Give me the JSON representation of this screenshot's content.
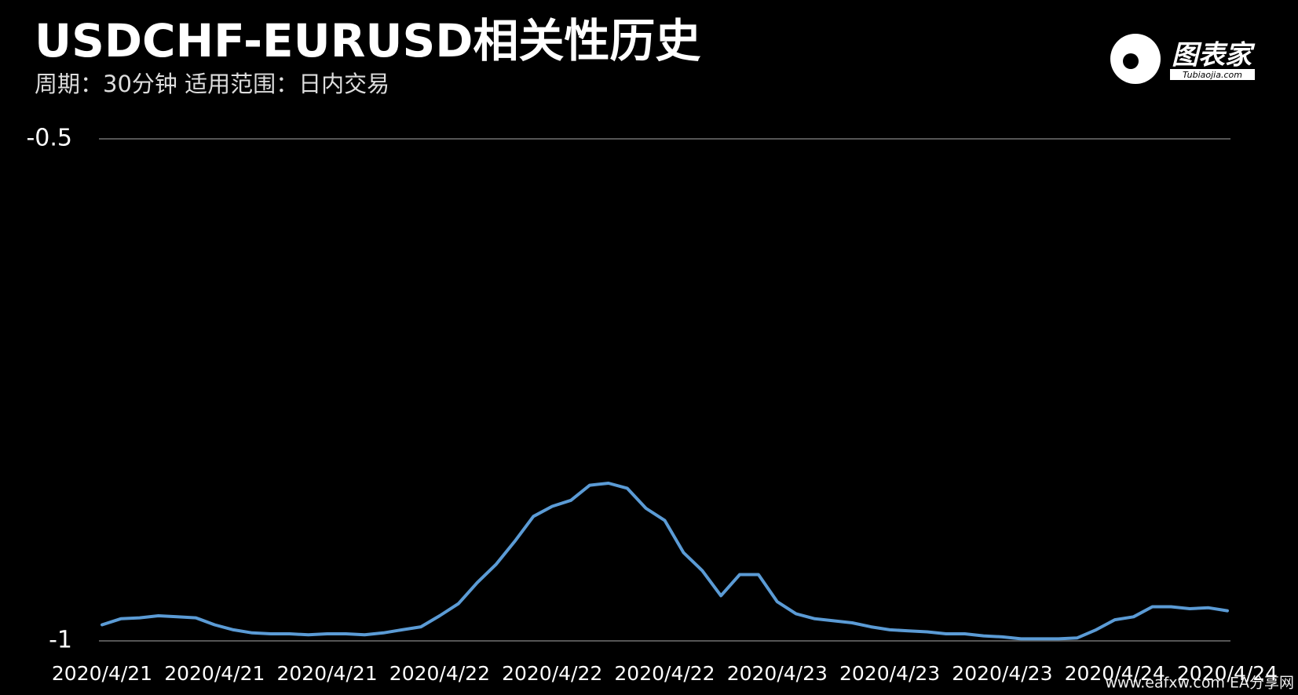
{
  "chart_data": {
    "type": "line",
    "title": "USDCHF-EURUSD相关性历史",
    "subtitle": "周期：30分钟  适用范围：日内交易",
    "logo": "图表家",
    "logo_sub": "Tubiaojia.com",
    "watermark": "www.eafxw.com  EA分享网",
    "categories": [
      "2020/4/21",
      null,
      null,
      null,
      null,
      null,
      "2020/4/21",
      null,
      null,
      null,
      null,
      null,
      "2020/4/21",
      null,
      null,
      null,
      null,
      null,
      "2020/4/22",
      null,
      null,
      null,
      null,
      null,
      "2020/4/22",
      null,
      null,
      null,
      null,
      null,
      "2020/4/22",
      null,
      null,
      null,
      null,
      null,
      "2020/4/23",
      null,
      null,
      null,
      null,
      null,
      "2020/4/23",
      null,
      null,
      null,
      null,
      null,
      "2020/4/23",
      null,
      null,
      null,
      null,
      null,
      "2020/4/24",
      null,
      null,
      null,
      null,
      null,
      "2020/4/24"
    ],
    "series": [
      {
        "name": "USDCHF-EURUSD",
        "color": "#5b9bd5",
        "values": [
          -0.984,
          -0.978,
          -0.977,
          -0.975,
          -0.976,
          -0.977,
          -0.984,
          -0.989,
          -0.992,
          -0.993,
          -0.993,
          -0.994,
          -0.993,
          -0.993,
          -0.994,
          -0.992,
          -0.989,
          -0.986,
          -0.975,
          -0.963,
          -0.942,
          -0.924,
          -0.901,
          -0.876,
          -0.866,
          -0.86,
          -0.845,
          -0.843,
          -0.848,
          -0.868,
          -0.88,
          -0.912,
          -0.93,
          -0.955,
          -0.934,
          -0.934,
          -0.961,
          -0.973,
          -0.978,
          -0.98,
          -0.982,
          -0.986,
          -0.989,
          -0.99,
          -0.991,
          -0.993,
          -0.993,
          -0.995,
          -0.996,
          -0.998,
          -0.998,
          -0.998,
          -0.997,
          -0.989,
          -0.979,
          -0.976,
          -0.966,
          -0.966,
          -0.968,
          -0.967,
          -0.97
        ]
      }
    ],
    "ylim": [
      -1,
      -0.5
    ],
    "yticks": [
      -1,
      -0.5
    ],
    "grid": true
  }
}
